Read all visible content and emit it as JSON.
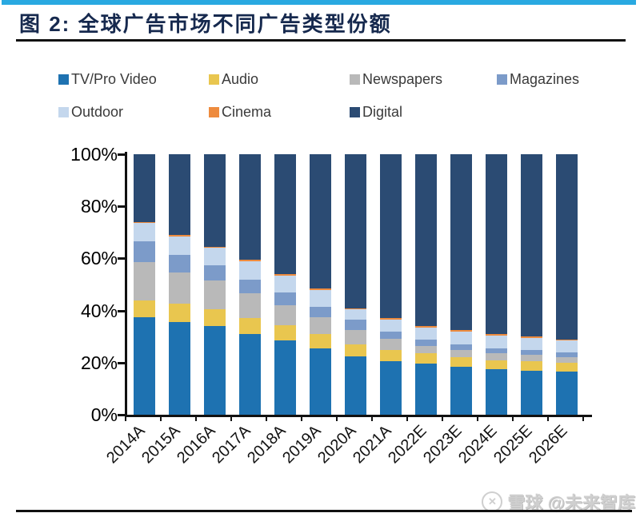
{
  "page": {
    "title": "图 2: 全球广告市场不同广告类型份额",
    "watermark": "雪球 @未来智库",
    "accent_color": "#29A9E1",
    "title_color": "#16294E"
  },
  "chart_data": {
    "type": "bar",
    "stacked": true,
    "normalized_to_100": true,
    "title": "全球广告市场不同广告类型份额",
    "categories": [
      "2014A",
      "2015A",
      "2016A",
      "2017A",
      "2018A",
      "2019A",
      "2020A",
      "2021A",
      "2022E",
      "2023E",
      "2024E",
      "2025E",
      "2026E"
    ],
    "series": [
      {
        "name": "TV/Pro Video",
        "color": "#1E72B1",
        "values": [
          37.5,
          35.5,
          34,
          31,
          28.5,
          25.5,
          22.5,
          20.5,
          19.5,
          18.5,
          17.5,
          17,
          16.5
        ]
      },
      {
        "name": "Audio",
        "color": "#E9C64F",
        "values": [
          6.5,
          7,
          6.5,
          6,
          6,
          5.5,
          4.5,
          4.5,
          4,
          3.5,
          3.5,
          3.5,
          3.5
        ]
      },
      {
        "name": "Newspapers",
        "color": "#B9B9B9",
        "values": [
          14.5,
          12,
          11,
          9.5,
          7.5,
          6.5,
          5.5,
          4,
          3,
          3,
          2.5,
          2.5,
          2
        ]
      },
      {
        "name": "Magazines",
        "color": "#7C9BC9",
        "values": [
          8,
          7,
          6,
          5.5,
          5,
          4,
          4,
          3,
          2.5,
          2,
          2,
          2,
          2
        ]
      },
      {
        "name": "Outdoor",
        "color": "#C4D7ED",
        "values": [
          7,
          7,
          6.5,
          7,
          6.5,
          6.5,
          4,
          4.5,
          4.5,
          5,
          5,
          4.5,
          4.5
        ]
      },
      {
        "name": "Cinema",
        "color": "#EE8B3E",
        "values": [
          0.5,
          0.5,
          0.5,
          0.5,
          0.5,
          0.5,
          0.2,
          0.5,
          0.5,
          0.5,
          0.5,
          0.5,
          0.5
        ]
      },
      {
        "name": "Digital",
        "color": "#2B4B73",
        "values": [
          26,
          31,
          35.5,
          40.5,
          46,
          51.5,
          59.3,
          63,
          66,
          67.5,
          69,
          70,
          71
        ]
      }
    ],
    "xlabel": "",
    "ylabel": "",
    "ylim": [
      0,
      100
    ],
    "yticks": [
      "0%",
      "20%",
      "40%",
      "60%",
      "80%",
      "100%"
    ],
    "legend_position": "top",
    "grid": false
  }
}
